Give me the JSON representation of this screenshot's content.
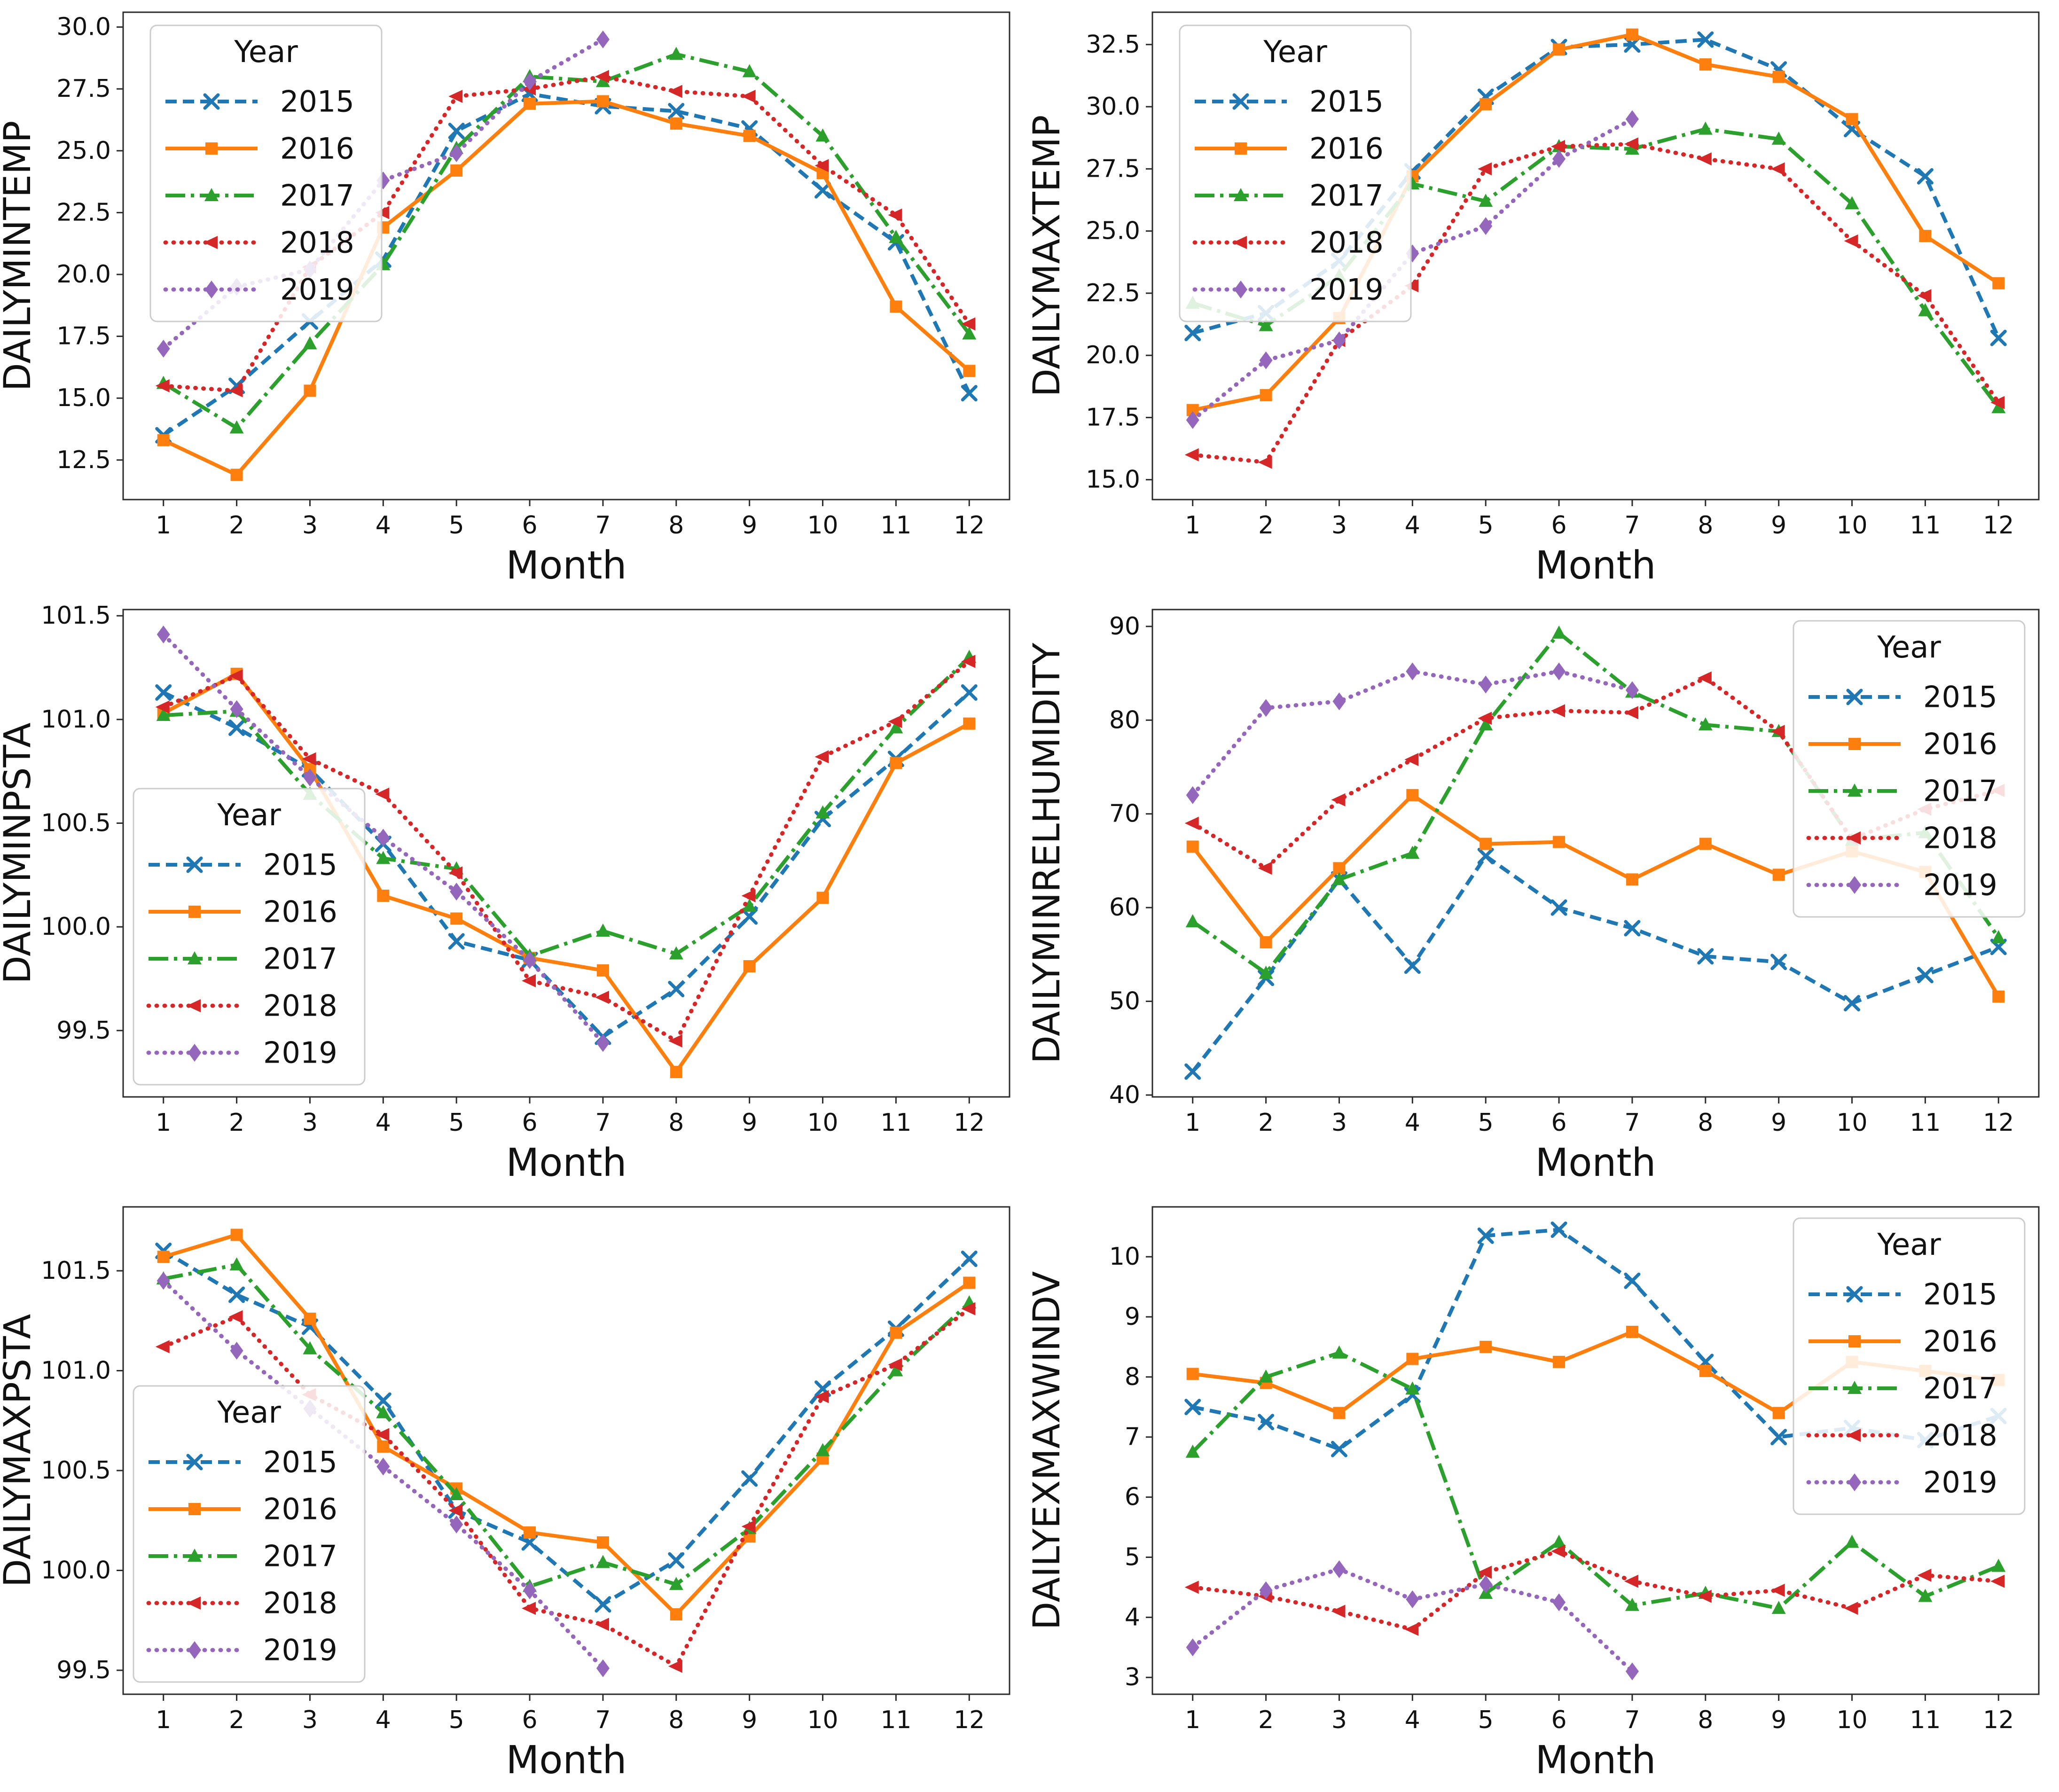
{
  "figure": {
    "background_color": "#ffffff",
    "axis_color": "#2b2b2b",
    "text_color": "#111111",
    "legend_title": "Year",
    "legend_border_color": "#cccccc",
    "xlabel": "Month",
    "x_categories": [
      1,
      2,
      3,
      4,
      5,
      6,
      7,
      8,
      9,
      10,
      11,
      12
    ],
    "series_styles": [
      {
        "name": "2015",
        "color": "#1f77b4",
        "linestyle": "dashed",
        "marker": "x",
        "marker_icon_name": "x-marker-icon"
      },
      {
        "name": "2016",
        "color": "#ff7f0e",
        "linestyle": "solid",
        "marker": "square",
        "marker_icon_name": "square-marker-icon"
      },
      {
        "name": "2017",
        "color": "#2ca02c",
        "linestyle": "dashdot",
        "marker": "triangle-up",
        "marker_icon_name": "triangle-up-marker-icon"
      },
      {
        "name": "2018",
        "color": "#d62728",
        "linestyle": "dotted",
        "marker": "triangle-left",
        "marker_icon_name": "triangle-left-marker-icon"
      },
      {
        "name": "2019",
        "color": "#9467bd",
        "linestyle": "dotted",
        "marker": "diamond",
        "marker_icon_name": "diamond-marker-icon"
      }
    ]
  },
  "chart_data": [
    {
      "type": "line",
      "ylabel": "DAILYMINTEMP",
      "xlabel": "Month",
      "x": [
        1,
        2,
        3,
        4,
        5,
        6,
        7,
        8,
        9,
        10,
        11,
        12
      ],
      "ylim": [
        10.9,
        30.6
      ],
      "yticks": [
        12.5,
        15.0,
        17.5,
        20.0,
        22.5,
        25.0,
        27.5,
        30.0
      ],
      "yticklabels": [
        "12.5",
        "15.0",
        "17.5",
        "20.0",
        "22.5",
        "25.0",
        "27.5",
        "30.0"
      ],
      "legend_position": "upper-left",
      "grid": false,
      "series": [
        {
          "name": "2015",
          "values": [
            13.5,
            15.5,
            18.1,
            20.6,
            25.8,
            27.3,
            26.8,
            26.6,
            25.9,
            23.4,
            21.3,
            15.2
          ]
        },
        {
          "name": "2016",
          "values": [
            13.3,
            11.9,
            15.3,
            21.9,
            24.2,
            26.9,
            27.0,
            26.1,
            25.6,
            24.1,
            18.7,
            16.1
          ]
        },
        {
          "name": "2017",
          "values": [
            15.6,
            13.8,
            17.2,
            20.4,
            25.1,
            28.0,
            27.8,
            28.9,
            28.2,
            25.6,
            21.5,
            17.6
          ]
        },
        {
          "name": "2018",
          "values": [
            15.5,
            15.3,
            20.3,
            22.5,
            27.2,
            27.5,
            28.0,
            27.4,
            27.2,
            24.4,
            22.4,
            18.0
          ]
        },
        {
          "name": "2019",
          "values": [
            17.0,
            19.5,
            20.2,
            23.8,
            24.9,
            27.8,
            29.5,
            null,
            null,
            null,
            null,
            null
          ]
        }
      ]
    },
    {
      "type": "line",
      "ylabel": "DAILYMAXTEMP",
      "xlabel": "Month",
      "x": [
        1,
        2,
        3,
        4,
        5,
        6,
        7,
        8,
        9,
        10,
        11,
        12
      ],
      "ylim": [
        14.2,
        33.8
      ],
      "yticks": [
        15.0,
        17.5,
        20.0,
        22.5,
        25.0,
        27.5,
        30.0,
        32.5
      ],
      "yticklabels": [
        "15.0",
        "17.5",
        "20.0",
        "22.5",
        "25.0",
        "27.5",
        "30.0",
        "32.5"
      ],
      "legend_position": "upper-left",
      "grid": false,
      "series": [
        {
          "name": "2015",
          "values": [
            20.9,
            21.7,
            23.8,
            27.4,
            30.4,
            32.4,
            32.5,
            32.7,
            31.5,
            29.1,
            27.2,
            20.7
          ]
        },
        {
          "name": "2016",
          "values": [
            17.8,
            18.4,
            21.5,
            27.2,
            30.1,
            32.3,
            32.9,
            31.7,
            31.2,
            29.5,
            24.8,
            22.9
          ]
        },
        {
          "name": "2017",
          "values": [
            22.1,
            21.2,
            23.2,
            26.9,
            26.2,
            28.4,
            28.3,
            29.1,
            28.7,
            26.1,
            21.8,
            17.9
          ]
        },
        {
          "name": "2018",
          "values": [
            16.0,
            15.7,
            20.6,
            22.8,
            27.5,
            28.4,
            28.5,
            27.9,
            27.5,
            24.6,
            22.4,
            18.1
          ]
        },
        {
          "name": "2019",
          "values": [
            17.4,
            19.8,
            20.6,
            24.1,
            25.2,
            27.9,
            29.5,
            null,
            null,
            null,
            null,
            null
          ]
        }
      ]
    },
    {
      "type": "line",
      "ylabel": "DAILYMINPSTA",
      "xlabel": "Month",
      "x": [
        1,
        2,
        3,
        4,
        5,
        6,
        7,
        8,
        9,
        10,
        11,
        12
      ],
      "ylim": [
        99.18,
        101.53
      ],
      "yticks": [
        99.5,
        100.0,
        100.5,
        101.0,
        101.5
      ],
      "yticklabels": [
        "99.5",
        "100.0",
        "100.5",
        "101.0",
        "101.5"
      ],
      "legend_position": "lower-left",
      "grid": false,
      "series": [
        {
          "name": "2015",
          "values": [
            101.13,
            100.96,
            100.76,
            100.4,
            99.93,
            99.84,
            99.47,
            99.7,
            100.05,
            100.52,
            100.81,
            101.13
          ]
        },
        {
          "name": "2016",
          "values": [
            101.03,
            101.22,
            100.76,
            100.15,
            100.04,
            99.85,
            99.79,
            99.3,
            99.81,
            100.14,
            100.79,
            100.98
          ]
        },
        {
          "name": "2017",
          "values": [
            101.02,
            101.04,
            100.64,
            100.33,
            100.28,
            99.86,
            99.98,
            99.87,
            100.1,
            100.55,
            100.96,
            101.3
          ]
        },
        {
          "name": "2018",
          "values": [
            101.06,
            101.21,
            100.81,
            100.64,
            100.26,
            99.74,
            99.66,
            99.45,
            100.15,
            100.82,
            100.99,
            101.28
          ]
        },
        {
          "name": "2019",
          "values": [
            101.41,
            101.05,
            100.72,
            100.43,
            100.17,
            99.84,
            99.44,
            null,
            null,
            null,
            null,
            null
          ]
        }
      ]
    },
    {
      "type": "line",
      "ylabel": "DAILYMINRELHUMIDITY",
      "xlabel": "Month",
      "x": [
        1,
        2,
        3,
        4,
        5,
        6,
        7,
        8,
        9,
        10,
        11,
        12
      ],
      "ylim": [
        39.8,
        91.8
      ],
      "yticks": [
        40,
        50,
        60,
        70,
        80,
        90
      ],
      "yticklabels": [
        "40",
        "50",
        "60",
        "70",
        "80",
        "90"
      ],
      "legend_position": "upper-right",
      "grid": false,
      "series": [
        {
          "name": "2015",
          "values": [
            42.5,
            52.5,
            63.0,
            53.8,
            65.5,
            60.0,
            57.8,
            54.8,
            54.2,
            49.8,
            52.8,
            55.8
          ]
        },
        {
          "name": "2016",
          "values": [
            66.5,
            56.3,
            64.2,
            72.0,
            66.8,
            67.0,
            63.0,
            66.8,
            63.5,
            66.0,
            63.8,
            50.5
          ]
        },
        {
          "name": "2017",
          "values": [
            58.5,
            53.0,
            63.0,
            65.8,
            79.5,
            89.3,
            83.0,
            79.5,
            78.8,
            67.2,
            68.0,
            56.8
          ]
        },
        {
          "name": "2018",
          "values": [
            69.0,
            64.2,
            71.5,
            75.8,
            80.2,
            81.0,
            80.8,
            84.5,
            78.8,
            67.3,
            70.5,
            72.5
          ]
        },
        {
          "name": "2019",
          "values": [
            72.0,
            81.3,
            82.0,
            85.2,
            83.8,
            85.2,
            83.2,
            null,
            null,
            null,
            null,
            null
          ]
        }
      ]
    },
    {
      "type": "line",
      "ylabel": "DAILYMAXPSTA",
      "xlabel": "Month",
      "x": [
        1,
        2,
        3,
        4,
        5,
        6,
        7,
        8,
        9,
        10,
        11,
        12
      ],
      "ylim": [
        99.38,
        101.82
      ],
      "yticks": [
        99.5,
        100.0,
        100.5,
        101.0,
        101.5
      ],
      "yticklabels": [
        "99.5",
        "100.0",
        "100.5",
        "101.0",
        "101.5"
      ],
      "legend_position": "lower-left",
      "grid": false,
      "series": [
        {
          "name": "2015",
          "values": [
            101.6,
            101.38,
            101.22,
            100.85,
            100.3,
            100.14,
            99.83,
            100.05,
            100.46,
            100.91,
            101.21,
            101.56
          ]
        },
        {
          "name": "2016",
          "values": [
            101.57,
            101.68,
            101.26,
            100.62,
            100.41,
            100.19,
            100.14,
            99.78,
            100.17,
            100.56,
            101.19,
            101.44
          ]
        },
        {
          "name": "2017",
          "values": [
            101.46,
            101.53,
            101.11,
            100.79,
            100.38,
            99.92,
            100.04,
            99.93,
            100.21,
            100.6,
            101.0,
            101.34
          ]
        },
        {
          "name": "2018",
          "values": [
            101.12,
            101.27,
            100.88,
            100.68,
            100.3,
            99.81,
            99.73,
            99.52,
            100.22,
            100.87,
            101.03,
            101.31
          ]
        },
        {
          "name": "2019",
          "values": [
            101.45,
            101.1,
            100.81,
            100.52,
            100.23,
            99.9,
            99.51,
            null,
            null,
            null,
            null,
            null
          ]
        }
      ]
    },
    {
      "type": "line",
      "ylabel": "DAILYEXMAXWINDV",
      "xlabel": "Month",
      "x": [
        1,
        2,
        3,
        4,
        5,
        6,
        7,
        8,
        9,
        10,
        11,
        12
      ],
      "ylim": [
        2.72,
        10.83
      ],
      "yticks": [
        3,
        4,
        5,
        6,
        7,
        8,
        9,
        10
      ],
      "yticklabels": [
        "3",
        "4",
        "5",
        "6",
        "7",
        "8",
        "9",
        "10"
      ],
      "legend_position": "upper-right",
      "grid": false,
      "series": [
        {
          "name": "2015",
          "values": [
            7.5,
            7.25,
            6.8,
            7.7,
            10.35,
            10.45,
            9.6,
            8.25,
            7.0,
            7.15,
            6.95,
            7.35
          ]
        },
        {
          "name": "2016",
          "values": [
            8.05,
            7.9,
            7.4,
            8.3,
            8.5,
            8.25,
            8.75,
            8.1,
            7.4,
            8.25,
            8.1,
            7.95
          ]
        },
        {
          "name": "2017",
          "values": [
            6.75,
            8.0,
            8.4,
            7.8,
            4.4,
            5.25,
            4.2,
            4.4,
            4.15,
            5.25,
            4.35,
            4.85
          ]
        },
        {
          "name": "2018",
          "values": [
            4.5,
            4.35,
            4.1,
            3.8,
            4.75,
            5.1,
            4.6,
            4.35,
            4.45,
            4.15,
            4.7,
            4.6
          ]
        },
        {
          "name": "2019",
          "values": [
            3.5,
            4.45,
            4.8,
            4.3,
            4.55,
            4.25,
            3.1,
            null,
            null,
            null,
            null,
            null
          ]
        }
      ]
    }
  ]
}
